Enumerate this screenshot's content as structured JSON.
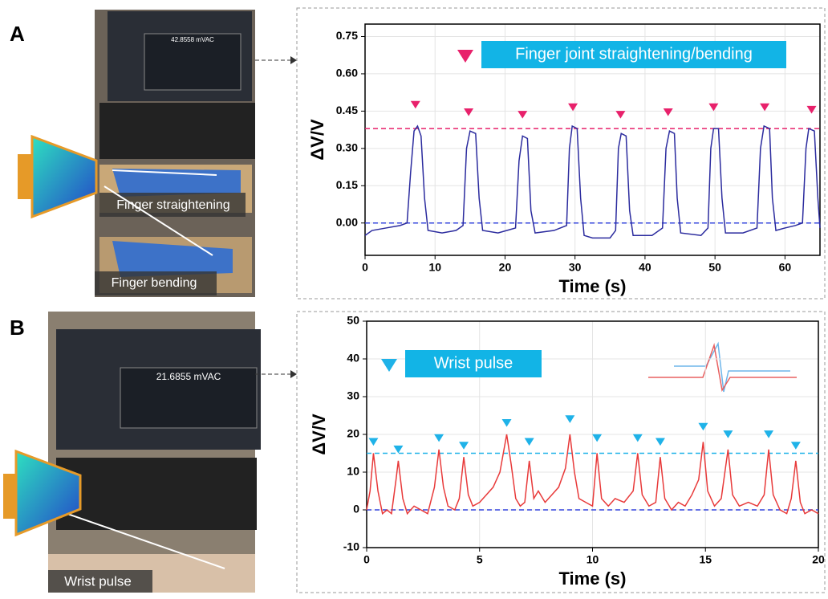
{
  "panels": [
    {
      "label": "A",
      "captions": [
        "Finger straightening",
        "Finger bending"
      ],
      "screen_reading": "42.8558 mVAC"
    },
    {
      "label": "B",
      "captions": [
        "Wrist pulse"
      ],
      "screen_reading": "21.6855 mVAC"
    }
  ],
  "chart_data": [
    {
      "type": "line",
      "ylabel": "ΔV/V",
      "xlabel": "Time (s)",
      "xlim": [
        0,
        65
      ],
      "xticks": [
        0,
        10,
        20,
        30,
        40,
        50,
        60
      ],
      "ylim": [
        -0.13,
        0.8
      ],
      "yticks": [
        {
          "value": 0,
          "label": "0.00"
        },
        0.15,
        {
          "value": 0.3,
          "label": "0.30"
        },
        0.45,
        {
          "value": 0.6,
          "label": "0.60"
        },
        0.75
      ],
      "series": [
        {
          "color": "#2b2b9e",
          "x": [
            0,
            1,
            3,
            5,
            6,
            6.5,
            7,
            7.5,
            8,
            8.5,
            9,
            11,
            13,
            14,
            14.5,
            15,
            15.8,
            16.3,
            16.8,
            19,
            21.5,
            22,
            22.5,
            23.2,
            23.7,
            24.3,
            27,
            28.8,
            29.2,
            29.6,
            30.3,
            30.8,
            31.3,
            32.5,
            35,
            35.8,
            36.2,
            36.6,
            37.3,
            37.8,
            38.3,
            41,
            42.5,
            43,
            43.5,
            44.2,
            44.6,
            45.1,
            48,
            49,
            49.4,
            49.8,
            50.5,
            51,
            51.5,
            54,
            56,
            56.5,
            57,
            57.8,
            58.2,
            58.7,
            60,
            61.5,
            62.5,
            63,
            63.4,
            64.2,
            64.7,
            65
          ],
          "values": [
            -0.05,
            -0.03,
            -0.02,
            -0.01,
            0,
            0.2,
            0.37,
            0.39,
            0.35,
            0.1,
            -0.03,
            -0.04,
            -0.03,
            -0.01,
            0.3,
            0.37,
            0.36,
            0.1,
            -0.03,
            -0.04,
            -0.02,
            0.25,
            0.35,
            0.34,
            0.05,
            -0.04,
            -0.03,
            -0.01,
            0.3,
            0.39,
            0.38,
            0.1,
            -0.05,
            -0.06,
            -0.06,
            -0.03,
            0.3,
            0.36,
            0.35,
            0.05,
            -0.05,
            -0.05,
            -0.02,
            0.3,
            0.37,
            0.36,
            0.1,
            -0.04,
            -0.05,
            -0.02,
            0.3,
            0.38,
            0.38,
            0.1,
            -0.04,
            -0.04,
            -0.02,
            0.3,
            0.39,
            0.38,
            0.1,
            -0.03,
            -0.02,
            -0.01,
            0,
            0.3,
            0.38,
            0.37,
            0.1,
            -0.02
          ]
        }
      ],
      "markers": {
        "name": "Finger joint straightening/bending",
        "color": "#e8216b",
        "x": [
          7.2,
          14.8,
          22.5,
          29.7,
          36.5,
          43.3,
          49.8,
          57.1,
          63.8
        ],
        "values": [
          0.46,
          0.43,
          0.42,
          0.45,
          0.42,
          0.43,
          0.45,
          0.45,
          0.44
        ]
      },
      "reference_lines": [
        {
          "value": 0.38,
          "color": "#e8216b"
        },
        {
          "value": 0,
          "color": "#3344dd"
        }
      ],
      "legend_color": "#12b4e6",
      "grid": true
    },
    {
      "type": "line",
      "ylabel": "ΔV/V",
      "xlabel": "Time (s)",
      "xlim": [
        0,
        20
      ],
      "xticks": [
        0,
        5,
        10,
        15,
        20
      ],
      "ylim": [
        -10,
        50
      ],
      "yticks": [
        -10,
        0,
        10,
        20,
        30,
        40,
        50
      ],
      "series": [
        {
          "color": "#e83a3a",
          "x": [
            0,
            0.15,
            0.3,
            0.5,
            0.7,
            0.9,
            1.1,
            1.3,
            1.4,
            1.6,
            1.8,
            2.1,
            2.4,
            2.7,
            3,
            3.2,
            3.4,
            3.6,
            3.9,
            4.1,
            4.3,
            4.5,
            4.7,
            5,
            5.3,
            5.6,
            5.9,
            6.2,
            6.4,
            6.6,
            6.8,
            7,
            7.2,
            7.4,
            7.6,
            7.9,
            8.2,
            8.5,
            8.8,
            9,
            9.2,
            9.4,
            9.7,
            10,
            10.2,
            10.4,
            10.7,
            11,
            11.4,
            11.8,
            12,
            12.2,
            12.5,
            12.8,
            13,
            13.2,
            13.5,
            13.8,
            14.1,
            14.4,
            14.7,
            14.9,
            15.1,
            15.4,
            15.7,
            16,
            16.2,
            16.5,
            16.9,
            17.3,
            17.6,
            17.8,
            18,
            18.3,
            18.6,
            18.8,
            19,
            19.2,
            19.4,
            19.7,
            20
          ],
          "values": [
            0,
            5,
            15,
            5,
            -1,
            0,
            -1,
            8,
            13,
            3,
            -1,
            1,
            0,
            -1,
            6,
            16,
            6,
            1,
            0,
            3,
            14,
            4,
            1,
            2,
            4,
            6,
            10,
            20,
            12,
            3,
            1,
            2,
            13,
            3,
            5,
            2,
            4,
            6,
            11,
            20,
            10,
            3,
            2,
            1,
            15,
            3,
            1,
            3,
            2,
            5,
            15,
            4,
            1,
            2,
            14,
            3,
            0,
            2,
            1,
            4,
            8,
            18,
            5,
            1,
            3,
            16,
            4,
            1,
            2,
            1,
            4,
            16,
            4,
            0,
            -1,
            3,
            13,
            2,
            -1,
            0,
            -1
          ]
        }
      ],
      "markers": {
        "name": "Wrist pulse",
        "color": "#1fb2e8",
        "x": [
          0.3,
          1.4,
          3.2,
          4.3,
          6.2,
          7.2,
          9,
          10.2,
          12,
          13,
          14.9,
          16,
          17.8,
          19
        ],
        "values": [
          17,
          15,
          18,
          16,
          22,
          17,
          23,
          18,
          18,
          17,
          21,
          19,
          19,
          16
        ]
      },
      "reference_lines": [
        {
          "value": 15,
          "color": "#1fb2e8"
        },
        {
          "value": 0,
          "color": "#3344dd"
        }
      ],
      "legend_color": "#12b4e6",
      "grid": true
    }
  ]
}
